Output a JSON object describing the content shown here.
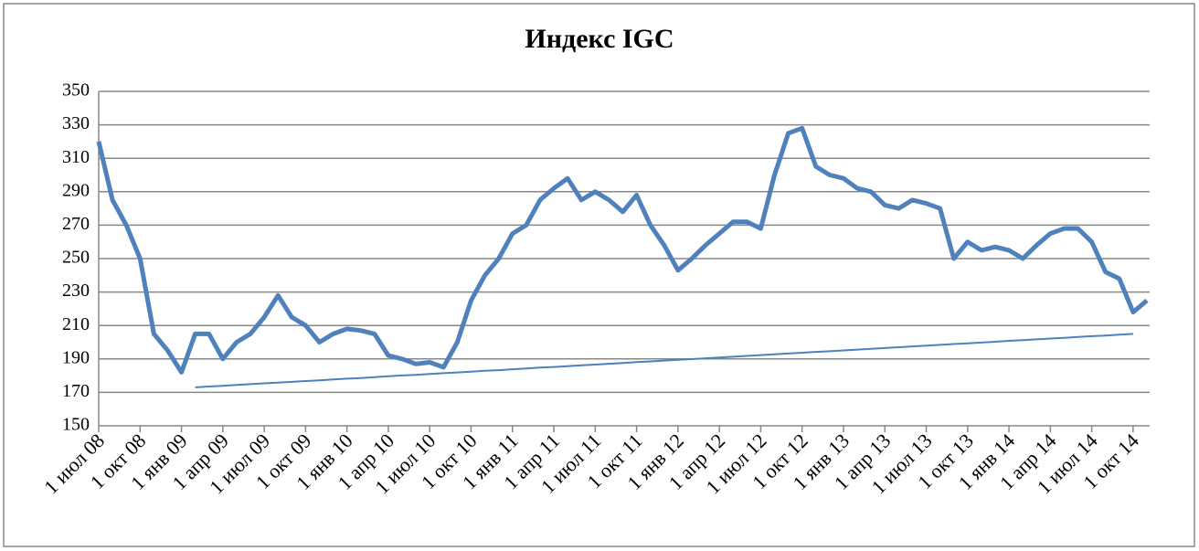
{
  "chart_data": {
    "type": "line",
    "title": "Индекс IGC",
    "categories": [
      "1 июл 08",
      null,
      null,
      "1 окт 08",
      null,
      null,
      "1 янв 09",
      null,
      null,
      "1 апр 09",
      null,
      null,
      "1 июл 09",
      null,
      null,
      "1 окт 09",
      null,
      null,
      "1 янв 10",
      null,
      null,
      "1 апр 10",
      null,
      null,
      "1 июл 10",
      null,
      null,
      "1 окт 10",
      null,
      null,
      "1 янв 11",
      null,
      null,
      "1 апр 11",
      null,
      null,
      "1 июл 11",
      null,
      null,
      "1 окт 11",
      null,
      null,
      "1 янв 12",
      null,
      null,
      "1 апр 12",
      null,
      null,
      "1 июл 12",
      null,
      null,
      "1 окт 12",
      null,
      null,
      "1 янв 13",
      null,
      null,
      "1 апр 13",
      null,
      null,
      "1 июл 13",
      null,
      null,
      "1 окт 13",
      null,
      null,
      "1 янв 14",
      null,
      null,
      "1 апр 14",
      null,
      null,
      "1 июл 14",
      null,
      null,
      "1 окт 14",
      null
    ],
    "series": [
      {
        "color": "#4f81bd",
        "width": 5,
        "values": [
          320,
          285,
          270,
          250,
          205,
          195,
          182,
          205,
          205,
          190,
          200,
          205,
          215,
          228,
          215,
          210,
          200,
          205,
          208,
          207,
          205,
          192,
          190,
          187,
          188,
          185,
          200,
          225,
          240,
          250,
          265,
          270,
          285,
          292,
          298,
          285,
          290,
          285,
          278,
          288,
          270,
          258,
          243,
          250,
          258,
          265,
          272,
          272,
          268,
          300,
          325,
          328,
          305,
          300,
          298,
          292,
          290,
          282,
          280,
          285,
          283,
          280,
          250,
          260,
          255,
          257,
          255,
          250,
          258,
          265,
          268,
          268,
          260,
          242,
          238,
          218,
          225
        ]
      },
      {
        "color": "#4f81bd",
        "width": 2,
        "values": [
          null,
          null,
          null,
          null,
          null,
          null,
          null,
          173.0,
          173.5,
          173.9,
          174.4,
          174.9,
          175.4,
          175.8,
          176.3,
          176.8,
          177.2,
          177.7,
          178.2,
          178.6,
          179.1,
          179.6,
          180.1,
          180.5,
          181.0,
          181.5,
          181.9,
          182.4,
          182.9,
          183.3,
          183.8,
          184.3,
          184.8,
          185.2,
          185.7,
          186.2,
          186.6,
          187.1,
          187.6,
          188.1,
          188.5,
          189.0,
          189.5,
          189.9,
          190.4,
          190.9,
          191.3,
          191.8,
          192.3,
          192.8,
          193.2,
          193.7,
          194.2,
          194.6,
          195.1,
          195.6,
          196.0,
          196.5,
          197.0,
          197.5,
          197.9,
          198.4,
          198.9,
          199.3,
          199.8,
          200.3,
          200.8,
          201.2,
          201.7,
          202.2,
          202.6,
          203.1,
          203.6,
          204.0,
          204.5,
          205.0,
          null
        ]
      }
    ],
    "ylim": [
      150,
      350
    ],
    "yticks": [
      150,
      170,
      190,
      210,
      230,
      250,
      270,
      290,
      310,
      330,
      350
    ],
    "grid": true
  }
}
